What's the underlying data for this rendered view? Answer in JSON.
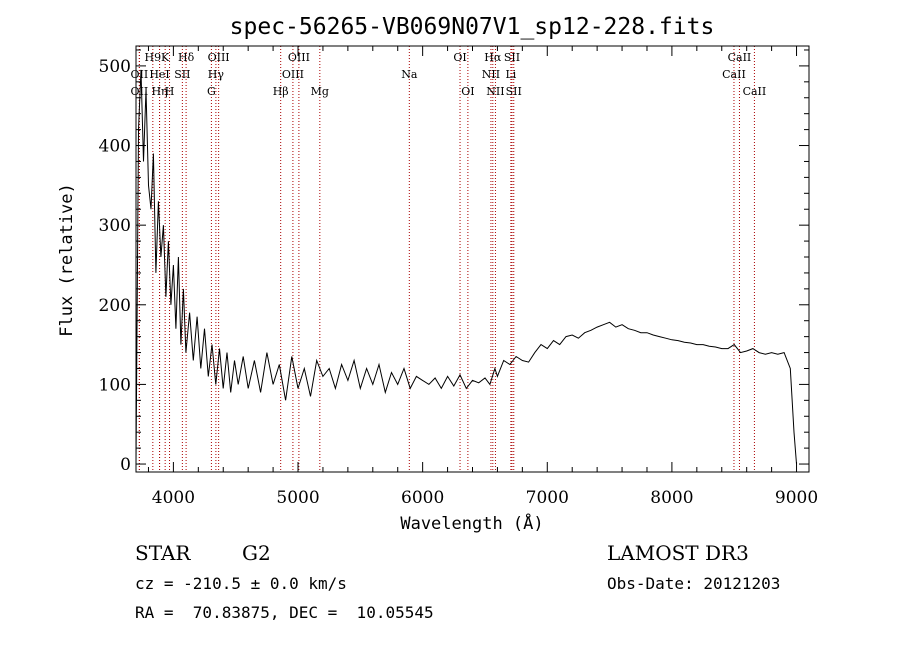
{
  "chart_data": {
    "type": "line",
    "title": "spec-56265-VB069N07V1_sp12-228.fits",
    "xlabel": "Wavelength (Å)",
    "ylabel": "Flux (relative)",
    "xlim": [
      3700,
      9100
    ],
    "ylim": [
      -10,
      525
    ],
    "xticks": [
      4000,
      5000,
      6000,
      7000,
      8000,
      9000
    ],
    "yticks": [
      0,
      100,
      200,
      300,
      400,
      500
    ],
    "grid": false,
    "series": [
      {
        "name": "spectrum",
        "x": [
          3700,
          3720,
          3740,
          3760,
          3780,
          3800,
          3820,
          3840,
          3860,
          3880,
          3900,
          3920,
          3940,
          3960,
          3980,
          4000,
          4020,
          4040,
          4060,
          4080,
          4100,
          4130,
          4160,
          4190,
          4220,
          4250,
          4280,
          4310,
          4340,
          4370,
          4400,
          4430,
          4460,
          4490,
          4520,
          4560,
          4600,
          4650,
          4700,
          4750,
          4800,
          4850,
          4900,
          4950,
          5000,
          5050,
          5100,
          5150,
          5200,
          5250,
          5300,
          5350,
          5400,
          5450,
          5500,
          5550,
          5600,
          5650,
          5700,
          5750,
          5800,
          5850,
          5900,
          5950,
          6000,
          6050,
          6100,
          6150,
          6200,
          6250,
          6300,
          6350,
          6400,
          6450,
          6500,
          6540,
          6580,
          6600,
          6650,
          6700,
          6750,
          6800,
          6850,
          6900,
          6950,
          7000,
          7050,
          7100,
          7150,
          7200,
          7250,
          7300,
          7350,
          7400,
          7450,
          7500,
          7550,
          7600,
          7650,
          7700,
          7750,
          7800,
          7850,
          7900,
          7950,
          8000,
          8050,
          8100,
          8150,
          8200,
          8250,
          8300,
          8350,
          8400,
          8450,
          8500,
          8550,
          8600,
          8650,
          8700,
          8750,
          8800,
          8850,
          8900,
          8950,
          8980,
          9000
        ],
        "values": [
          0,
          420,
          495,
          380,
          470,
          350,
          320,
          390,
          240,
          330,
          260,
          300,
          210,
          280,
          200,
          250,
          170,
          260,
          150,
          220,
          140,
          190,
          130,
          185,
          120,
          170,
          110,
          150,
          100,
          145,
          95,
          140,
          90,
          130,
          100,
          135,
          95,
          130,
          90,
          140,
          100,
          125,
          80,
          135,
          95,
          120,
          85,
          130,
          110,
          120,
          95,
          125,
          105,
          130,
          95,
          120,
          100,
          125,
          90,
          115,
          100,
          120,
          95,
          110,
          105,
          100,
          108,
          95,
          110,
          98,
          112,
          95,
          105,
          102,
          108,
          100,
          120,
          110,
          130,
          125,
          135,
          130,
          128,
          140,
          150,
          145,
          155,
          150,
          160,
          162,
          158,
          165,
          168,
          172,
          175,
          178,
          172,
          175,
          170,
          168,
          165,
          165,
          162,
          160,
          158,
          156,
          155,
          153,
          152,
          150,
          150,
          148,
          147,
          145,
          145,
          150,
          140,
          142,
          145,
          140,
          138,
          140,
          138,
          140,
          120,
          40,
          0
        ]
      }
    ],
    "lines": [
      {
        "label": "H9",
        "wave": 3835,
        "row": 1
      },
      {
        "label": "OII",
        "wave": 3727,
        "row": 2
      },
      {
        "label": "OII",
        "wave": 3727,
        "row": 3
      },
      {
        "label": "K",
        "wave": 3934,
        "row": 1
      },
      {
        "label": "Hη",
        "wave": 3889,
        "row": 3
      },
      {
        "label": "HeI",
        "wave": 3889,
        "row": 2
      },
      {
        "label": "SII",
        "wave": 4072,
        "row": 2
      },
      {
        "label": "H",
        "wave": 3969,
        "row": 3
      },
      {
        "label": "Hδ",
        "wave": 4102,
        "row": 1
      },
      {
        "label": "OIII",
        "wave": 4363,
        "row": 1
      },
      {
        "label": "Hγ",
        "wave": 4341,
        "row": 2
      },
      {
        "label": "G",
        "wave": 4305,
        "row": 3
      },
      {
        "label": "OIII",
        "wave": 5007,
        "row": 1
      },
      {
        "label": "OIII",
        "wave": 4959,
        "row": 2
      },
      {
        "label": "Hβ",
        "wave": 4861,
        "row": 3
      },
      {
        "label": "Mg",
        "wave": 5175,
        "row": 3
      },
      {
        "label": "Na",
        "wave": 5893,
        "row": 2
      },
      {
        "label": "OI",
        "wave": 6300,
        "row": 1
      },
      {
        "label": "OI",
        "wave": 6363,
        "row": 3
      },
      {
        "label": "Hα",
        "wave": 6563,
        "row": 1
      },
      {
        "label": "NII",
        "wave": 6548,
        "row": 2
      },
      {
        "label": "NII",
        "wave": 6584,
        "row": 3
      },
      {
        "label": "SII",
        "wave": 6717,
        "row": 1
      },
      {
        "label": "Li",
        "wave": 6708,
        "row": 2
      },
      {
        "label": "SII",
        "wave": 6731,
        "row": 3
      },
      {
        "label": "CaII",
        "wave": 8542,
        "row": 1
      },
      {
        "label": "CaII",
        "wave": 8498,
        "row": 2
      },
      {
        "label": "CaII",
        "wave": 8662,
        "row": 3
      }
    ]
  },
  "footer": {
    "object_type": "STAR",
    "subclass": "G2",
    "survey": "LAMOST DR3",
    "cz": "cz = -210.5 ± 0.0 km/s",
    "obs_date": "Obs-Date: 20121203",
    "coords": "RA =  70.83875, DEC =  10.05545"
  },
  "colors": {
    "spectrum": "#000000",
    "line_marker": "#aa0000"
  }
}
